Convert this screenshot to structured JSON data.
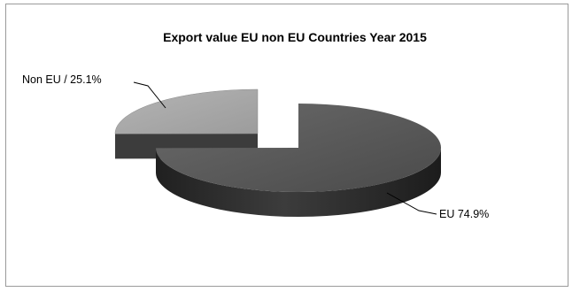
{
  "chart_data": {
    "type": "pie",
    "title": "Export  value EU non EU Countries  Year 2015",
    "style": "3d-exploded",
    "slices": [
      {
        "name": "EU",
        "value": 74.9,
        "label": "EU  74.9%",
        "color": "#545454"
      },
      {
        "name": "Non EU",
        "value": 25.1,
        "label": "Non EU / 25.1%",
        "color": "#a8a8a8"
      }
    ],
    "legend": "none",
    "grid": false
  }
}
